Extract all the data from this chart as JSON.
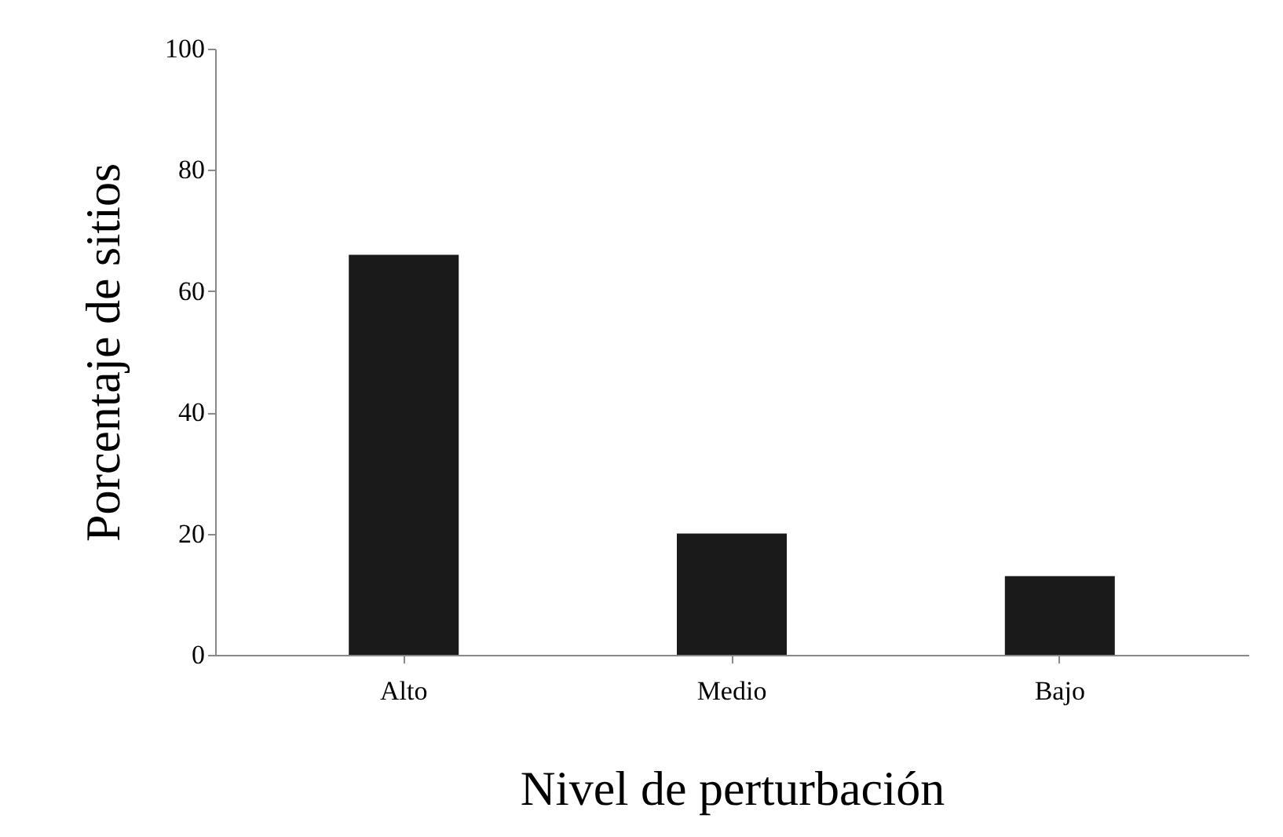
{
  "chart_data": {
    "type": "bar",
    "xlabel": "Nivel de perturbación",
    "ylabel": "Porcentaje de sitios",
    "categories": [
      "Alto",
      "Medio",
      "Bajo"
    ],
    "values": [
      66,
      20,
      13
    ],
    "color": "#1a1a1a",
    "ylim": [
      0,
      100
    ],
    "yticks": [
      0,
      20,
      40,
      60,
      80,
      100
    ],
    "grid": false
  }
}
